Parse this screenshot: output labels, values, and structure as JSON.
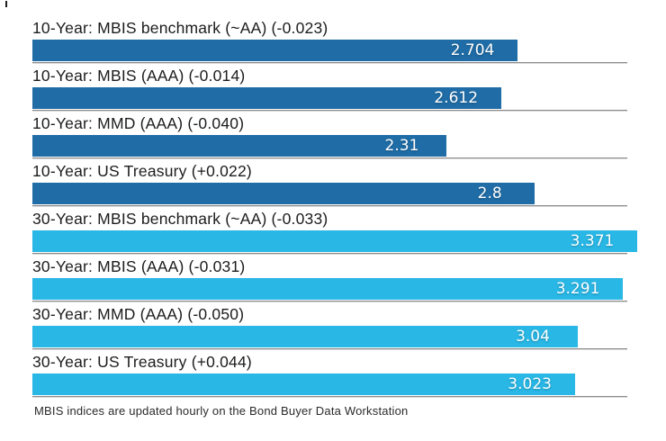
{
  "chart_data": {
    "type": "bar",
    "orientation": "horizontal",
    "title": "",
    "footnote": "MBIS indices are updated hourly on the Bond Buyer Data Workstation",
    "xlim": [
      0,
      3.371
    ],
    "grid": "per-row baseline separators",
    "legend_position": "none",
    "colors": {
      "ten_year": "#1f6ca6",
      "thirty_year": "#29b7e5",
      "separator": "#8a8a8a",
      "label_text": "#1c1c1c",
      "value_text": "#ffffff"
    },
    "rows": [
      {
        "label": "10-Year: MBIS benchmark (~AA) (-0.023)",
        "value": 2.704,
        "value_label": "2.704",
        "group": "10-year"
      },
      {
        "label": "10-Year: MBIS (AAA) (-0.014)",
        "value": 2.612,
        "value_label": "2.612",
        "group": "10-year"
      },
      {
        "label": "10-Year: MMD (AAA) (-0.040)",
        "value": 2.31,
        "value_label": "2.31",
        "group": "10-year"
      },
      {
        "label": "10-Year: US Treasury (+0.022)",
        "value": 2.8,
        "value_label": "2.8",
        "group": "10-year"
      },
      {
        "label": "30-Year: MBIS benchmark (~AA) (-0.033)",
        "value": 3.371,
        "value_label": "3.371",
        "group": "30-year"
      },
      {
        "label": "30-Year: MBIS (AAA) (-0.031)",
        "value": 3.291,
        "value_label": "3.291",
        "group": "30-year"
      },
      {
        "label": "30-Year: MMD (AAA) (-0.050)",
        "value": 3.04,
        "value_label": "3.04",
        "group": "30-year"
      },
      {
        "label": "30-Year: US Treasury (+0.044)",
        "value": 3.023,
        "value_label": "3.023",
        "group": "30-year"
      }
    ]
  }
}
